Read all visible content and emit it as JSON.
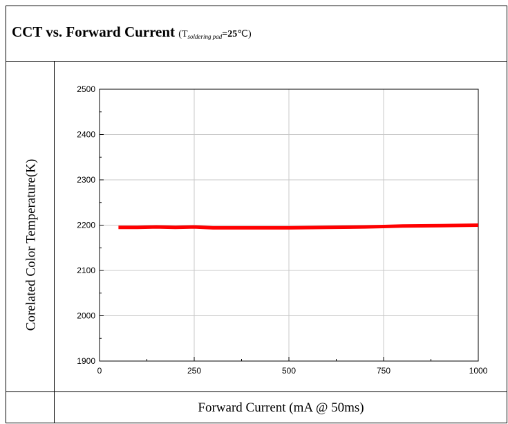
{
  "page": {
    "title_main": "CCT vs. Forward Current",
    "title_open": "(T",
    "title_sub": "soldering pad",
    "title_eq": "=25",
    "title_unit": "℃)"
  },
  "chart_data": {
    "type": "line",
    "title": "CCT vs. Forward Current",
    "xlabel": "Forward Current (mA @ 50ms)",
    "ylabel": "Corelated Color Temperature(K)",
    "xlim": [
      0,
      1000
    ],
    "ylim": [
      1900,
      2500
    ],
    "x_ticks": [
      0,
      250,
      500,
      750,
      1000
    ],
    "x_minor_ticks": [
      125,
      375,
      625,
      875
    ],
    "y_ticks": [
      1900,
      2000,
      2100,
      2200,
      2300,
      2400,
      2500
    ],
    "y_minor_ticks": [
      1950,
      2050,
      2150,
      2250,
      2350,
      2450
    ],
    "grid": true,
    "series": [
      {
        "color": "#ff0000",
        "x": [
          50,
          100,
          150,
          200,
          250,
          300,
          400,
          500,
          600,
          700,
          750,
          800,
          900,
          1000
        ],
        "y": [
          2195,
          2195,
          2196,
          2195,
          2196,
          2194,
          2194,
          2194,
          2195,
          2196,
          2197,
          2198,
          2199,
          2200
        ]
      }
    ]
  }
}
